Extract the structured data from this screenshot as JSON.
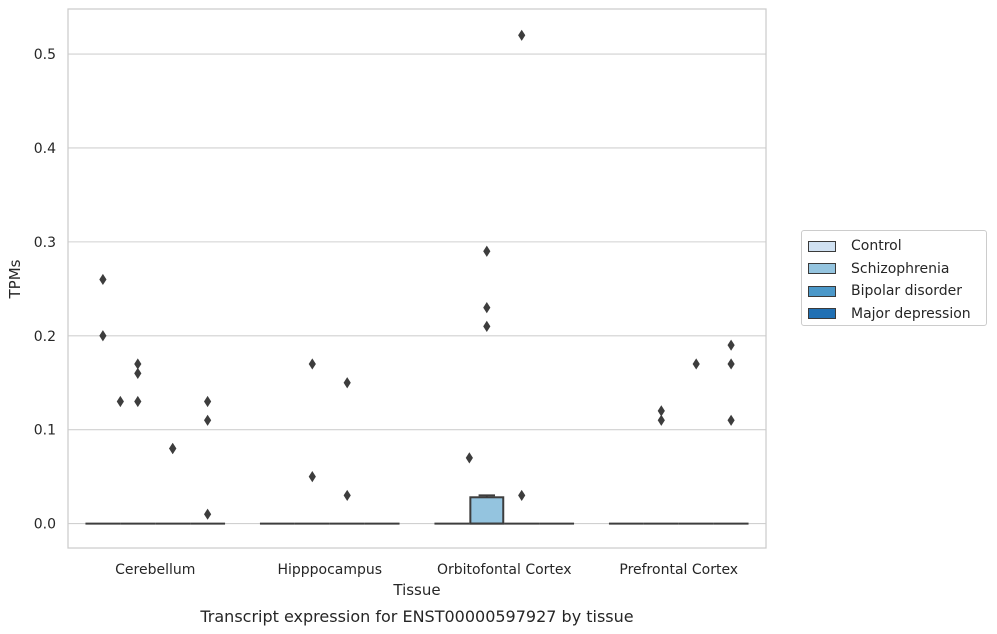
{
  "chart_data": {
    "type": "boxplot",
    "caption": "Transcript expression for ENST00000597927 by tissue",
    "xlabel": "Tissue",
    "ylabel": "TPMs",
    "ylim": [
      -0.026,
      0.548
    ],
    "yticks": [
      "0.0",
      "0.1",
      "0.2",
      "0.3",
      "0.4",
      "0.5"
    ],
    "ytick_values": [
      0.0,
      0.1,
      0.2,
      0.3,
      0.4,
      0.5
    ],
    "grid": true,
    "legend_position": "right",
    "categories": [
      "Cerebellum",
      "Hipppocampus",
      "Orbitofontal Cortex",
      "Prefrontal Cortex"
    ],
    "series": [
      {
        "name": "Control",
        "color": "#d0e1f2",
        "boxes": [
          {
            "q1": 0,
            "median": 0,
            "q3": 0,
            "whisker_low": 0,
            "whisker_high": 0,
            "outliers": [
              0.26,
              0.2
            ]
          },
          {
            "q1": 0,
            "median": 0,
            "q3": 0,
            "whisker_low": 0,
            "whisker_high": 0,
            "outliers": []
          },
          {
            "q1": 0,
            "median": 0,
            "q3": 0,
            "whisker_low": 0,
            "whisker_high": 0,
            "outliers": []
          },
          {
            "q1": 0,
            "median": 0,
            "q3": 0,
            "whisker_low": 0,
            "whisker_high": 0,
            "outliers": []
          }
        ]
      },
      {
        "name": "Schizophrenia",
        "color": "#94c4df",
        "boxes": [
          {
            "q1": 0,
            "median": 0,
            "q3": 0,
            "whisker_low": 0,
            "whisker_high": 0,
            "outliers": [
              0.17,
              0.16,
              0.13
            ]
          },
          {
            "q1": 0,
            "median": 0,
            "q3": 0,
            "whisker_low": 0,
            "whisker_high": 0,
            "outliers": [
              0.17,
              0.05
            ]
          },
          {
            "q1": 0,
            "median": 0,
            "q3": 0.028,
            "whisker_low": 0,
            "whisker_high": 0.03,
            "outliers": [
              0.29,
              0.23,
              0.21
            ]
          },
          {
            "q1": 0,
            "median": 0,
            "q3": 0,
            "whisker_low": 0,
            "whisker_high": 0,
            "outliers": [
              0.12,
              0.11
            ]
          }
        ]
      },
      {
        "name": "Bipolar disorder",
        "color": "#4b98c9",
        "boxes": [
          {
            "q1": 0,
            "median": 0,
            "q3": 0,
            "whisker_low": 0,
            "whisker_high": 0,
            "outliers": [
              0.08,
              0.08
            ]
          },
          {
            "q1": 0,
            "median": 0,
            "q3": 0,
            "whisker_low": 0,
            "whisker_high": 0,
            "outliers": [
              0.15,
              0.03
            ]
          },
          {
            "q1": 0,
            "median": 0,
            "q3": 0,
            "whisker_low": 0,
            "whisker_high": 0,
            "outliers": [
              0.52,
              0.03
            ]
          },
          {
            "q1": 0,
            "median": 0,
            "q3": 0,
            "whisker_low": 0,
            "whisker_high": 0,
            "outliers": [
              0.17
            ]
          }
        ]
      },
      {
        "name": "Major depression",
        "color": "#2070b4",
        "boxes": [
          {
            "q1": 0,
            "median": 0,
            "q3": 0,
            "whisker_low": 0,
            "whisker_high": 0,
            "outliers": [
              0.13,
              0.11,
              0.01
            ]
          },
          {
            "q1": 0,
            "median": 0,
            "q3": 0,
            "whisker_low": 0,
            "whisker_high": 0,
            "outliers": []
          },
          {
            "q1": 0,
            "median": 0,
            "q3": 0,
            "whisker_low": 0,
            "whisker_high": 0,
            "outliers": []
          },
          {
            "q1": 0,
            "median": 0,
            "q3": 0,
            "whisker_low": 0,
            "whisker_high": 0,
            "outliers": [
              0.19,
              0.17,
              0.11
            ]
          }
        ]
      }
    ]
  },
  "extra_outliers": [
    {
      "category": 0,
      "value": 0.13
    },
    {
      "category": 2,
      "value": 0.07
    }
  ]
}
